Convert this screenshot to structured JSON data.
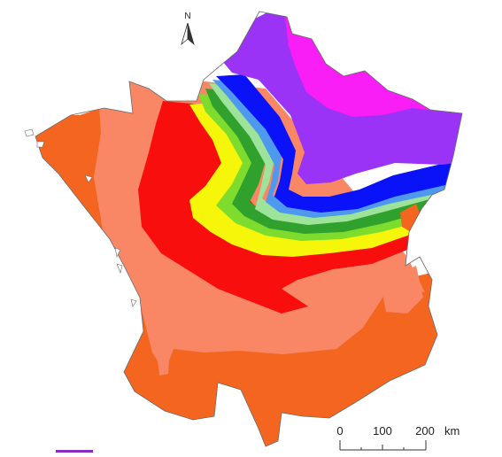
{
  "map": {
    "north_label": "N",
    "scale_bar": {
      "labels": [
        "0",
        "100",
        "200"
      ],
      "unit": "km"
    },
    "colors": {
      "outline": "#6a6a6a",
      "zone_orange": "#f4661f",
      "zone_salmon": "#f98766",
      "zone_red": "#f90e0e",
      "zone_yellow": "#f6f60a",
      "zone_green_light": "#7ddc2d",
      "zone_green_dark": "#31a12d",
      "zone_green_pale": "#9ee39a",
      "zone_blue_light": "#4e98ee",
      "zone_blue": "#0a13f7",
      "zone_purple": "#9a33f5",
      "zone_magenta": "#f91df6",
      "legend_swatch": "#8a2bc2"
    }
  }
}
